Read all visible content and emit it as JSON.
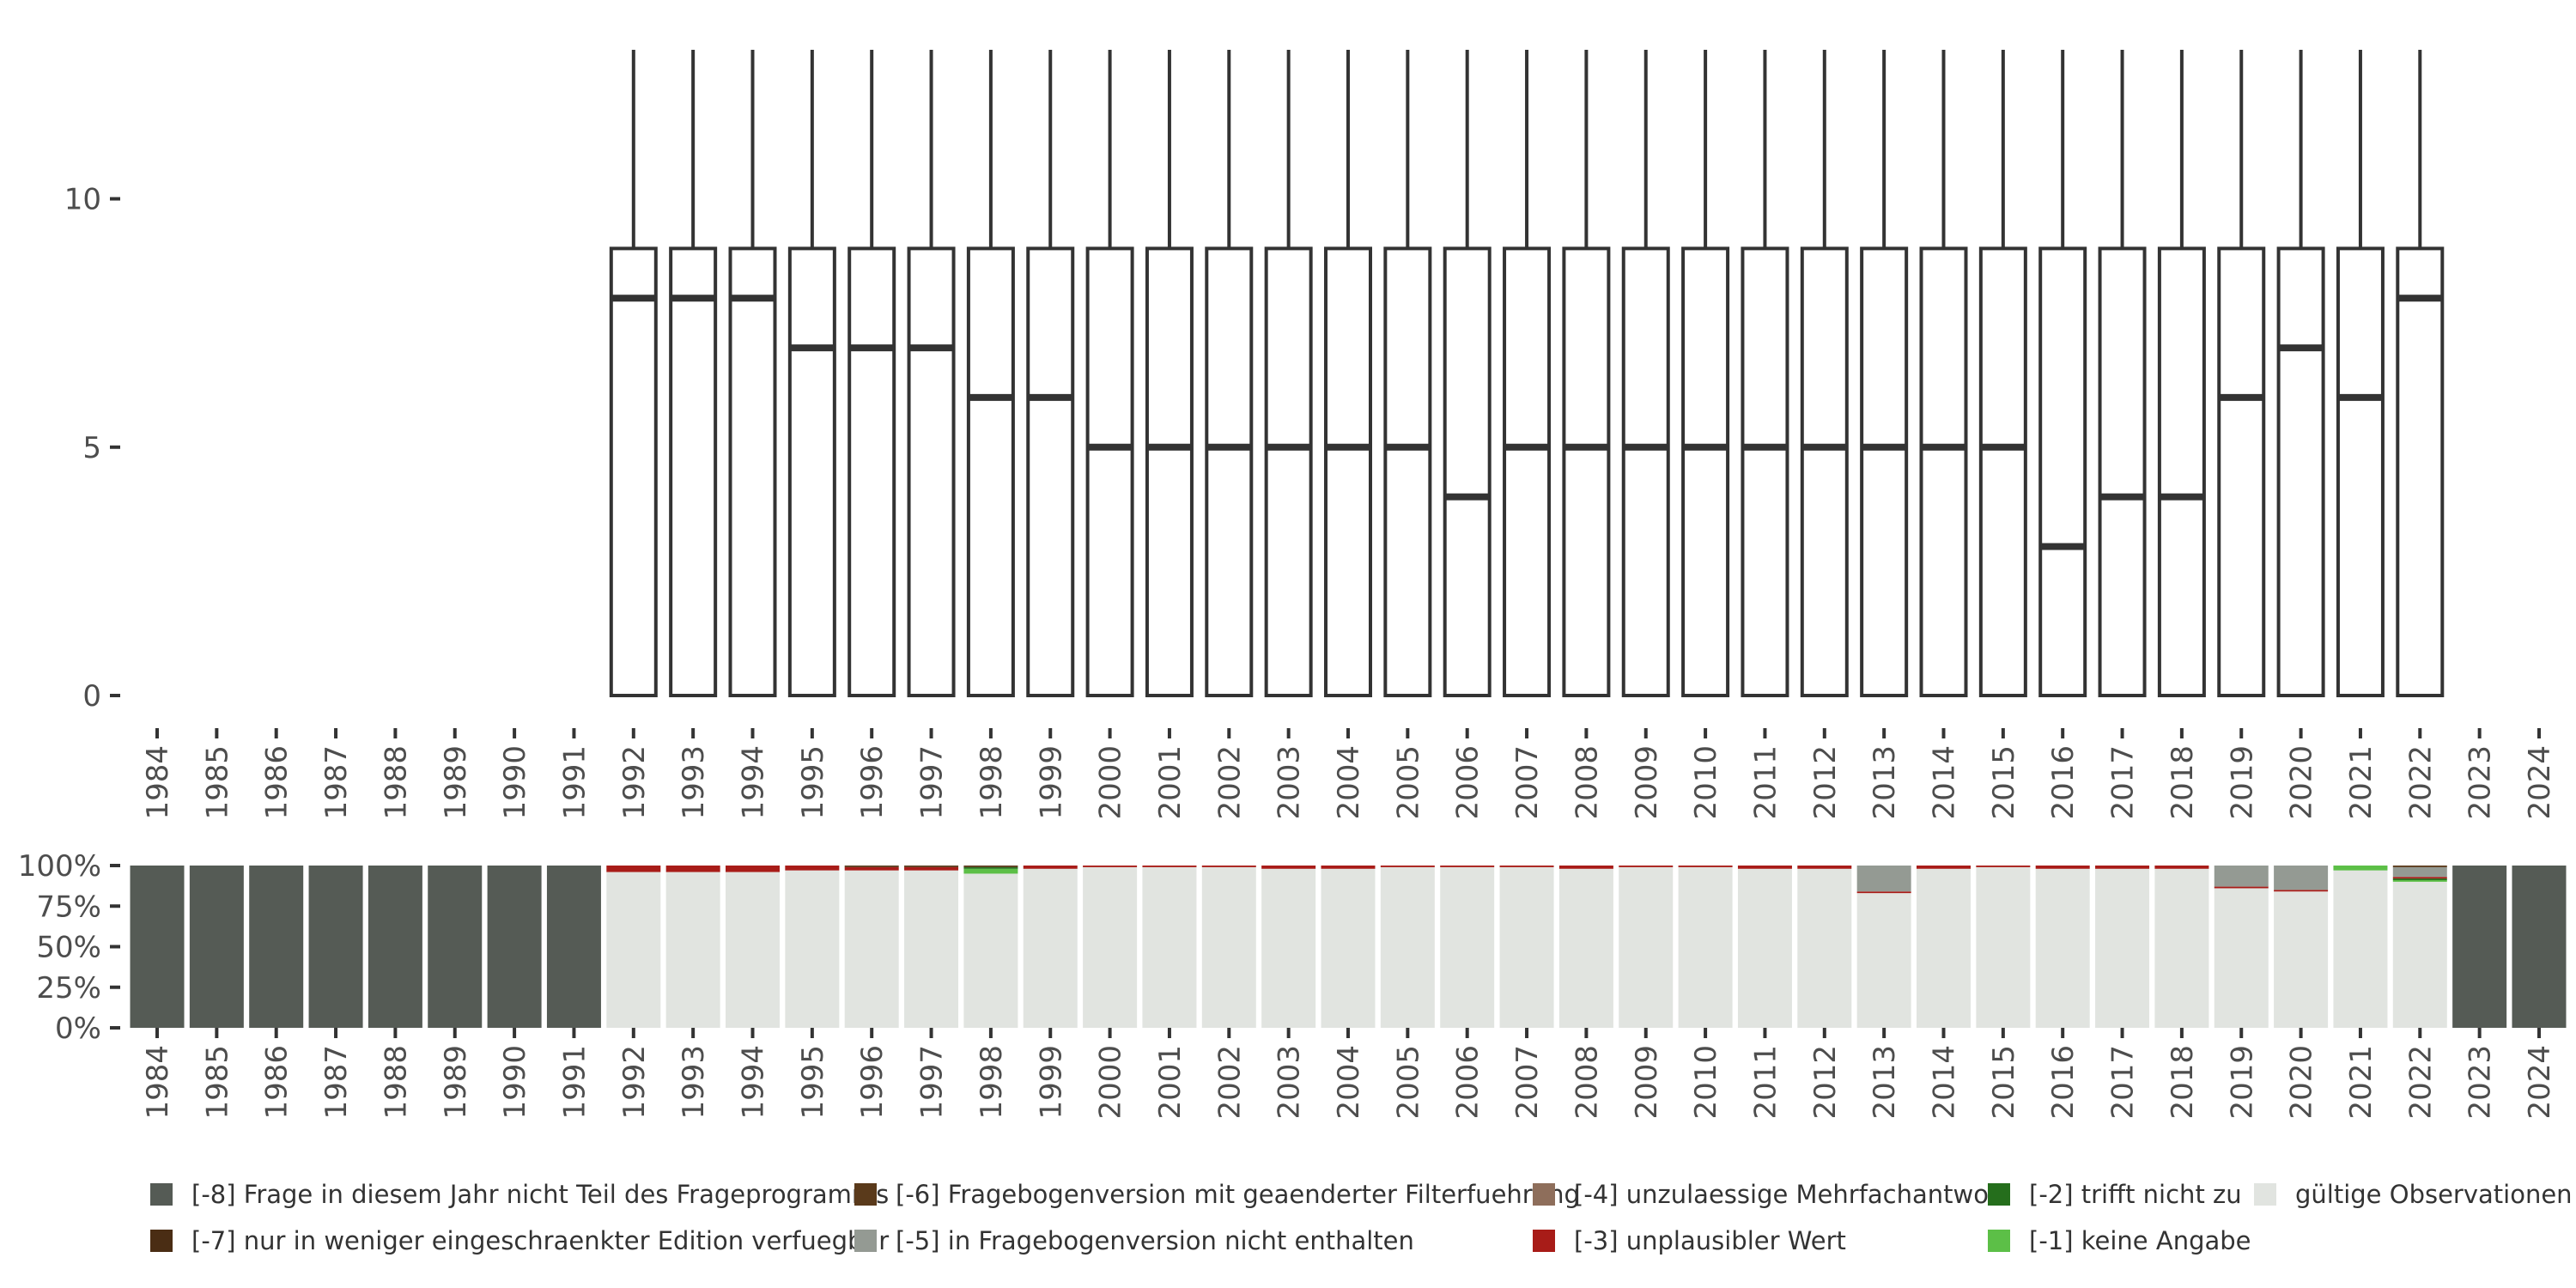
{
  "chart_data": [
    {
      "type": "boxplot",
      "title": "",
      "xlabel": "",
      "ylabel": "",
      "ylim": [
        0,
        13
      ],
      "y_ticks": [
        0,
        5,
        10
      ],
      "grid": false,
      "categories": [
        "1984",
        "1985",
        "1986",
        "1987",
        "1988",
        "1989",
        "1990",
        "1991",
        "1992",
        "1993",
        "1994",
        "1995",
        "1996",
        "1997",
        "1998",
        "1999",
        "2000",
        "2001",
        "2002",
        "2003",
        "2004",
        "2005",
        "2006",
        "2007",
        "2008",
        "2009",
        "2010",
        "2011",
        "2012",
        "2013",
        "2014",
        "2015",
        "2016",
        "2017",
        "2018",
        "2019",
        "2020",
        "2021",
        "2022",
        "2023",
        "2024"
      ],
      "boxes": [
        {
          "year": "1992",
          "min": 0,
          "q1": 0,
          "median": 8,
          "q3": 9,
          "max": 13
        },
        {
          "year": "1993",
          "min": 0,
          "q1": 0,
          "median": 8,
          "q3": 9,
          "max": 13
        },
        {
          "year": "1994",
          "min": 0,
          "q1": 0,
          "median": 8,
          "q3": 9,
          "max": 13
        },
        {
          "year": "1995",
          "min": 0,
          "q1": 0,
          "median": 7,
          "q3": 9,
          "max": 13
        },
        {
          "year": "1996",
          "min": 0,
          "q1": 0,
          "median": 7,
          "q3": 9,
          "max": 13
        },
        {
          "year": "1997",
          "min": 0,
          "q1": 0,
          "median": 7,
          "q3": 9,
          "max": 13
        },
        {
          "year": "1998",
          "min": 0,
          "q1": 0,
          "median": 6,
          "q3": 9,
          "max": 13
        },
        {
          "year": "1999",
          "min": 0,
          "q1": 0,
          "median": 6,
          "q3": 9,
          "max": 13
        },
        {
          "year": "2000",
          "min": 0,
          "q1": 0,
          "median": 5,
          "q3": 9,
          "max": 13
        },
        {
          "year": "2001",
          "min": 0,
          "q1": 0,
          "median": 5,
          "q3": 9,
          "max": 13
        },
        {
          "year": "2002",
          "min": 0,
          "q1": 0,
          "median": 5,
          "q3": 9,
          "max": 13
        },
        {
          "year": "2003",
          "min": 0,
          "q1": 0,
          "median": 5,
          "q3": 9,
          "max": 13
        },
        {
          "year": "2004",
          "min": 0,
          "q1": 0,
          "median": 5,
          "q3": 9,
          "max": 13
        },
        {
          "year": "2005",
          "min": 0,
          "q1": 0,
          "median": 5,
          "q3": 9,
          "max": 13
        },
        {
          "year": "2006",
          "min": 0,
          "q1": 0,
          "median": 4,
          "q3": 9,
          "max": 13
        },
        {
          "year": "2007",
          "min": 0,
          "q1": 0,
          "median": 5,
          "q3": 9,
          "max": 13
        },
        {
          "year": "2008",
          "min": 0,
          "q1": 0,
          "median": 5,
          "q3": 9,
          "max": 13
        },
        {
          "year": "2009",
          "min": 0,
          "q1": 0,
          "median": 5,
          "q3": 9,
          "max": 13
        },
        {
          "year": "2010",
          "min": 0,
          "q1": 0,
          "median": 5,
          "q3": 9,
          "max": 13
        },
        {
          "year": "2011",
          "min": 0,
          "q1": 0,
          "median": 5,
          "q3": 9,
          "max": 13
        },
        {
          "year": "2012",
          "min": 0,
          "q1": 0,
          "median": 5,
          "q3": 9,
          "max": 13
        },
        {
          "year": "2013",
          "min": 0,
          "q1": 0,
          "median": 5,
          "q3": 9,
          "max": 13
        },
        {
          "year": "2014",
          "min": 0,
          "q1": 0,
          "median": 5,
          "q3": 9,
          "max": 13
        },
        {
          "year": "2015",
          "min": 0,
          "q1": 0,
          "median": 5,
          "q3": 9,
          "max": 13
        },
        {
          "year": "2016",
          "min": 0,
          "q1": 0,
          "median": 3,
          "q3": 9,
          "max": 13
        },
        {
          "year": "2017",
          "min": 0,
          "q1": 0,
          "median": 4,
          "q3": 9,
          "max": 13
        },
        {
          "year": "2018",
          "min": 0,
          "q1": 0,
          "median": 4,
          "q3": 9,
          "max": 13
        },
        {
          "year": "2019",
          "min": 0,
          "q1": 0,
          "median": 6,
          "q3": 9,
          "max": 13
        },
        {
          "year": "2020",
          "min": 0,
          "q1": 0,
          "median": 7,
          "q3": 9,
          "max": 13
        },
        {
          "year": "2021",
          "min": 0,
          "q1": 0,
          "median": 6,
          "q3": 9,
          "max": 13
        },
        {
          "year": "2022",
          "min": 0,
          "q1": 0,
          "median": 8,
          "q3": 9,
          "max": 13
        }
      ]
    },
    {
      "type": "bar",
      "stacked": true,
      "title": "",
      "xlabel": "",
      "ylabel": "",
      "ylim": [
        0,
        100
      ],
      "y_ticks": [
        0,
        25,
        50,
        75,
        100
      ],
      "y_tick_labels": [
        "0%",
        "25%",
        "50%",
        "75%",
        "100%"
      ],
      "grid": false,
      "legend_position": "bottom",
      "categories": [
        "1984",
        "1985",
        "1986",
        "1987",
        "1988",
        "1989",
        "1990",
        "1991",
        "1992",
        "1993",
        "1994",
        "1995",
        "1996",
        "1997",
        "1998",
        "1999",
        "2000",
        "2001",
        "2002",
        "2003",
        "2004",
        "2005",
        "2006",
        "2007",
        "2008",
        "2009",
        "2010",
        "2011",
        "2012",
        "2013",
        "2014",
        "2015",
        "2016",
        "2017",
        "2018",
        "2019",
        "2020",
        "2021",
        "2022",
        "2023",
        "2024"
      ],
      "series": [
        {
          "key": "valid",
          "name": "gültige Observationen",
          "color": "#e1e4e0",
          "values": [
            0,
            0,
            0,
            0,
            0,
            0,
            0,
            0,
            96,
            96,
            96,
            97,
            97,
            97,
            95,
            98,
            99,
            99,
            99,
            98,
            98,
            99,
            99,
            99,
            98,
            99,
            99,
            98,
            98,
            83,
            98,
            99,
            98,
            98,
            98,
            86,
            84,
            97,
            90,
            0,
            0
          ]
        },
        {
          "key": "m1",
          "name": "[-1] keine Angabe",
          "color": "#5cbf47",
          "values": [
            0,
            0,
            0,
            0,
            0,
            0,
            0,
            0,
            0,
            0,
            0,
            0,
            0,
            0,
            3,
            0,
            0,
            0,
            0,
            0,
            0,
            0,
            0,
            0,
            0,
            0,
            0,
            0,
            0,
            0,
            0,
            0,
            0,
            0,
            0,
            0,
            0,
            3,
            1,
            0,
            0
          ]
        },
        {
          "key": "m2",
          "name": "[-2] trifft nicht zu",
          "color": "#256e1c",
          "values": [
            0,
            0,
            0,
            0,
            0,
            0,
            0,
            0,
            0,
            0,
            0,
            0,
            0,
            0,
            1,
            0,
            0,
            0,
            0,
            0,
            0,
            0,
            0,
            0,
            0,
            0,
            0,
            0,
            0,
            0,
            0,
            0,
            0,
            0,
            0,
            0,
            0,
            0,
            1,
            0,
            0
          ]
        },
        {
          "key": "m3",
          "name": "[-3] unplausibler Wert",
          "color": "#a81c18",
          "values": [
            0,
            0,
            0,
            0,
            0,
            0,
            0,
            0,
            4,
            4,
            4,
            3,
            2,
            2,
            0,
            2,
            1,
            1,
            1,
            2,
            2,
            1,
            1,
            1,
            2,
            1,
            1,
            2,
            2,
            1,
            2,
            1,
            2,
            2,
            2,
            1,
            1,
            0,
            1,
            0,
            0
          ]
        },
        {
          "key": "m4",
          "name": "[-4] unzulaessige Mehrfachantwort",
          "color": "#8e6e5b",
          "values": [
            0,
            0,
            0,
            0,
            0,
            0,
            0,
            0,
            0,
            0,
            0,
            0,
            0,
            0,
            0,
            0,
            0,
            0,
            0,
            0,
            0,
            0,
            0,
            0,
            0,
            0,
            0,
            0,
            0,
            0,
            0,
            0,
            0,
            0,
            0,
            0,
            0,
            0,
            0,
            0,
            0
          ]
        },
        {
          "key": "m5",
          "name": "[-5] in Fragebogenversion nicht enthalten",
          "color": "#949a93",
          "values": [
            0,
            0,
            0,
            0,
            0,
            0,
            0,
            0,
            0,
            0,
            0,
            0,
            0,
            0,
            0,
            0,
            0,
            0,
            0,
            0,
            0,
            0,
            0,
            0,
            0,
            0,
            0,
            0,
            0,
            16,
            0,
            0,
            0,
            0,
            0,
            13,
            15,
            0,
            6,
            0,
            0
          ]
        },
        {
          "key": "m6",
          "name": "[-6] Fragebogenversion mit geaenderter Filterfuehrung",
          "color": "#5a3a1b",
          "values": [
            0,
            0,
            0,
            0,
            0,
            0,
            0,
            0,
            0,
            0,
            0,
            0,
            1,
            1,
            1,
            0,
            0,
            0,
            0,
            0,
            0,
            0,
            0,
            0,
            0,
            0,
            0,
            0,
            0,
            0,
            0,
            0,
            0,
            0,
            0,
            0,
            0,
            0,
            1,
            0,
            0
          ]
        },
        {
          "key": "m7",
          "name": "[-7] nur in weniger eingeschraenkter Edition verfuegbar",
          "color": "#4a2d14",
          "values": [
            0,
            0,
            0,
            0,
            0,
            0,
            0,
            0,
            0,
            0,
            0,
            0,
            0,
            0,
            0,
            0,
            0,
            0,
            0,
            0,
            0,
            0,
            0,
            0,
            0,
            0,
            0,
            0,
            0,
            0,
            0,
            0,
            0,
            0,
            0,
            0,
            0,
            0,
            0,
            0,
            0
          ]
        },
        {
          "key": "m8",
          "name": "[-8] Frage in diesem Jahr nicht Teil des Frageprogramms",
          "color": "#555b55",
          "values": [
            100,
            100,
            100,
            100,
            100,
            100,
            100,
            100,
            0,
            0,
            0,
            0,
            0,
            0,
            0,
            0,
            0,
            0,
            0,
            0,
            0,
            0,
            0,
            0,
            0,
            0,
            0,
            0,
            0,
            0,
            0,
            0,
            0,
            0,
            0,
            0,
            0,
            0,
            0,
            100,
            100
          ]
        }
      ],
      "legend_order": [
        "m8",
        "m6",
        "m4",
        "m2",
        "valid",
        "m7",
        "m5",
        "m3",
        "m1"
      ]
    }
  ]
}
